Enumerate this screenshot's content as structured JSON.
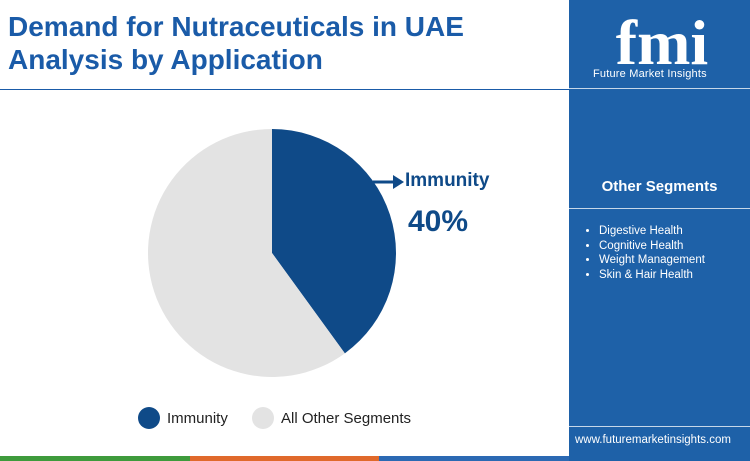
{
  "header": {
    "title_line1": "Demand for Nutraceuticals in UAE",
    "title_line2": "Analysis by Application"
  },
  "brand": {
    "logo_text": "fmi",
    "name": "Future Market Insights",
    "url": "www.futuremarketinsights.com"
  },
  "sidebar": {
    "title": "Other Segments",
    "items": [
      "Digestive Health",
      "Cognitive Health",
      "Weight Management",
      "Skin & Hair Health"
    ]
  },
  "callout": {
    "label": "Immunity",
    "value": "40%"
  },
  "colors": {
    "immunity": "#0f4a88",
    "other": "#e3e3e3",
    "brand_blue": "#1a5ba8",
    "sidebar_bg": "#1e61a8",
    "bar": [
      "#3e9b3c",
      "#e0692b",
      "#2b69b3",
      "#c89a2e"
    ]
  },
  "chart_data": {
    "type": "pie",
    "title": "Demand for Nutraceuticals in UAE Analysis by Application",
    "slices": [
      {
        "label": "Immunity",
        "value": 40,
        "color": "#0f4a88"
      },
      {
        "label": "All Other Segments",
        "value": 60,
        "color": "#e3e3e3"
      }
    ],
    "legend": {
      "position": "bottom",
      "entries": [
        "Immunity",
        "All Other Segments"
      ]
    }
  }
}
